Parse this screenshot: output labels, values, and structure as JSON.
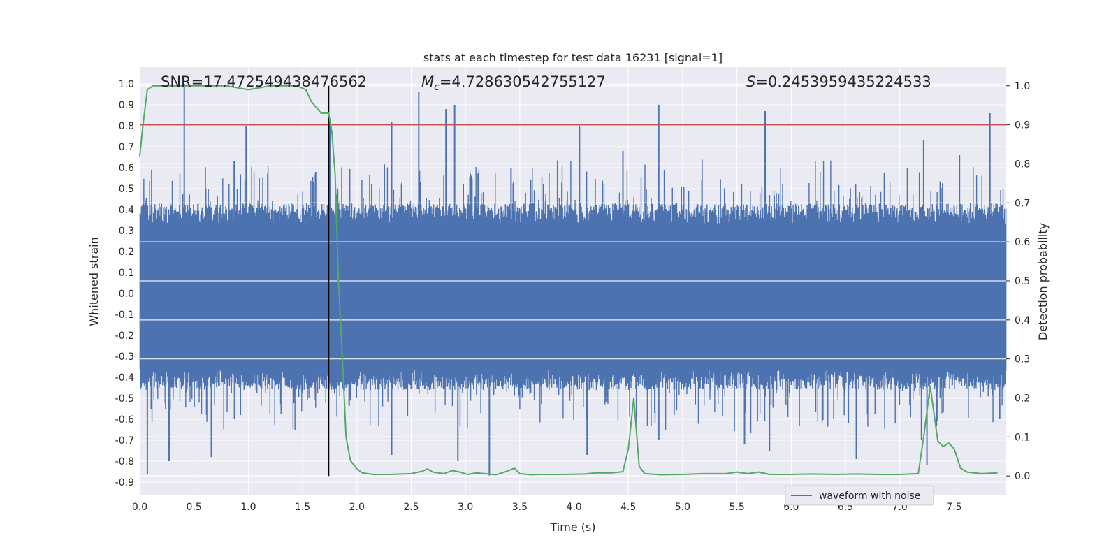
{
  "chart_data": {
    "type": "line",
    "title": "stats at each timestep for test data 16231 [signal=1]",
    "xlabel": "Time (s)",
    "ylabel_left": "Whitened strain",
    "ylabel_right": "Detection probability",
    "xlim": [
      0.0,
      7.98
    ],
    "ylim_left": [
      -0.96,
      1.08
    ],
    "ylim_right": [
      -0.048,
      1.048
    ],
    "x_ticks": [
      "0.0",
      "0.5",
      "1.0",
      "1.5",
      "2.0",
      "2.5",
      "3.0",
      "3.5",
      "4.0",
      "4.5",
      "5.0",
      "5.5",
      "6.0",
      "6.5",
      "7.0",
      "7.5"
    ],
    "y_ticks_left": [
      "1.0",
      "0.9",
      "0.8",
      "0.7",
      "0.6",
      "0.5",
      "0.4",
      "0.3",
      "0.2",
      "0.1",
      "0.0",
      "-0.1",
      "-0.2",
      "-0.3",
      "-0.4",
      "-0.5",
      "-0.6",
      "-0.7",
      "-0.8",
      "-0.9"
    ],
    "y_ticks_right": [
      "1.0",
      "0.9",
      "0.8",
      "0.7",
      "0.6",
      "0.5",
      "0.4",
      "0.3",
      "0.2",
      "0.1",
      "0.0"
    ],
    "annotations": {
      "snr": "SNR=17.472549438476562",
      "mc_symbol": "M",
      "mc_sub": "c",
      "mc_value": "=4.728630542755127",
      "s_symbol": "S",
      "s_value": "=0.2453959435224533"
    },
    "threshold": {
      "axis": "right",
      "value": 0.9,
      "color": "#c44e52"
    },
    "marker_time": 1.74,
    "grid": true,
    "legend": {
      "placement": "lower right",
      "entries": [
        "waveform with noise"
      ]
    },
    "colors": {
      "waveform": "#4c72b0",
      "probability": "#55a868",
      "marker": "#000000",
      "background": "#eaeaf2"
    },
    "series": [
      {
        "name": "waveform with noise",
        "axis": "left",
        "envelope_baseline": [
          0.33,
          -0.36
        ],
        "peaks_up": [
          [
            0.41,
            1.0
          ],
          [
            0.87,
            0.63
          ],
          [
            0.98,
            0.8
          ],
          [
            1.62,
            0.58
          ],
          [
            1.75,
            0.82
          ],
          [
            2.32,
            0.82
          ],
          [
            2.57,
            0.96
          ],
          [
            2.82,
            0.88
          ],
          [
            2.9,
            0.9
          ],
          [
            3.42,
            0.6
          ],
          [
            4.05,
            0.8
          ],
          [
            4.45,
            0.68
          ],
          [
            4.78,
            0.9
          ],
          [
            5.76,
            0.87
          ],
          [
            7.22,
            0.73
          ],
          [
            7.55,
            0.66
          ],
          [
            7.83,
            0.86
          ]
        ],
        "peaks_down": [
          [
            0.07,
            -0.86
          ],
          [
            0.27,
            -0.8
          ],
          [
            0.66,
            -0.78
          ],
          [
            2.32,
            -0.77
          ],
          [
            2.93,
            -0.8
          ],
          [
            3.22,
            -0.87
          ],
          [
            4.12,
            -0.77
          ],
          [
            4.78,
            -0.7
          ],
          [
            5.57,
            -0.72
          ],
          [
            5.8,
            -0.75
          ],
          [
            6.6,
            -0.79
          ],
          [
            7.2,
            -0.7
          ],
          [
            7.25,
            -0.82
          ],
          [
            7.92,
            -0.6
          ]
        ]
      },
      {
        "name": "",
        "axis": "right",
        "points": [
          [
            0.0,
            0.82
          ],
          [
            0.03,
            0.9
          ],
          [
            0.07,
            0.99
          ],
          [
            0.12,
            1.0
          ],
          [
            0.5,
            1.0
          ],
          [
            0.8,
            1.0
          ],
          [
            1.0,
            0.99
          ],
          [
            1.2,
            1.0
          ],
          [
            1.45,
            1.0
          ],
          [
            1.53,
            0.99
          ],
          [
            1.58,
            0.96
          ],
          [
            1.67,
            0.93
          ],
          [
            1.74,
            0.93
          ],
          [
            1.77,
            0.88
          ],
          [
            1.8,
            0.77
          ],
          [
            1.83,
            0.5
          ],
          [
            1.87,
            0.28
          ],
          [
            1.9,
            0.1
          ],
          [
            1.94,
            0.04
          ],
          [
            2.0,
            0.018
          ],
          [
            2.05,
            0.008
          ],
          [
            2.15,
            0.004
          ],
          [
            2.3,
            0.004
          ],
          [
            2.5,
            0.006
          ],
          [
            2.6,
            0.012
          ],
          [
            2.65,
            0.018
          ],
          [
            2.7,
            0.01
          ],
          [
            2.8,
            0.006
          ],
          [
            2.88,
            0.014
          ],
          [
            2.95,
            0.01
          ],
          [
            3.02,
            0.004
          ],
          [
            3.1,
            0.008
          ],
          [
            3.18,
            0.006
          ],
          [
            3.28,
            0.003
          ],
          [
            3.38,
            0.012
          ],
          [
            3.45,
            0.02
          ],
          [
            3.5,
            0.006
          ],
          [
            3.6,
            0.003
          ],
          [
            3.7,
            0.004
          ],
          [
            3.9,
            0.004
          ],
          [
            4.1,
            0.005
          ],
          [
            4.2,
            0.008
          ],
          [
            4.35,
            0.008
          ],
          [
            4.45,
            0.011
          ],
          [
            4.5,
            0.07
          ],
          [
            4.55,
            0.2
          ],
          [
            4.6,
            0.025
          ],
          [
            4.65,
            0.006
          ],
          [
            4.8,
            0.003
          ],
          [
            5.0,
            0.004
          ],
          [
            5.2,
            0.006
          ],
          [
            5.4,
            0.006
          ],
          [
            5.5,
            0.01
          ],
          [
            5.6,
            0.006
          ],
          [
            5.7,
            0.01
          ],
          [
            5.8,
            0.004
          ],
          [
            6.0,
            0.004
          ],
          [
            6.2,
            0.005
          ],
          [
            6.4,
            0.004
          ],
          [
            6.6,
            0.005
          ],
          [
            6.8,
            0.004
          ],
          [
            7.0,
            0.004
          ],
          [
            7.17,
            0.006
          ],
          [
            7.22,
            0.1
          ],
          [
            7.28,
            0.23
          ],
          [
            7.35,
            0.09
          ],
          [
            7.4,
            0.075
          ],
          [
            7.45,
            0.085
          ],
          [
            7.5,
            0.07
          ],
          [
            7.56,
            0.02
          ],
          [
            7.62,
            0.01
          ],
          [
            7.75,
            0.006
          ],
          [
            7.9,
            0.008
          ]
        ]
      }
    ]
  }
}
